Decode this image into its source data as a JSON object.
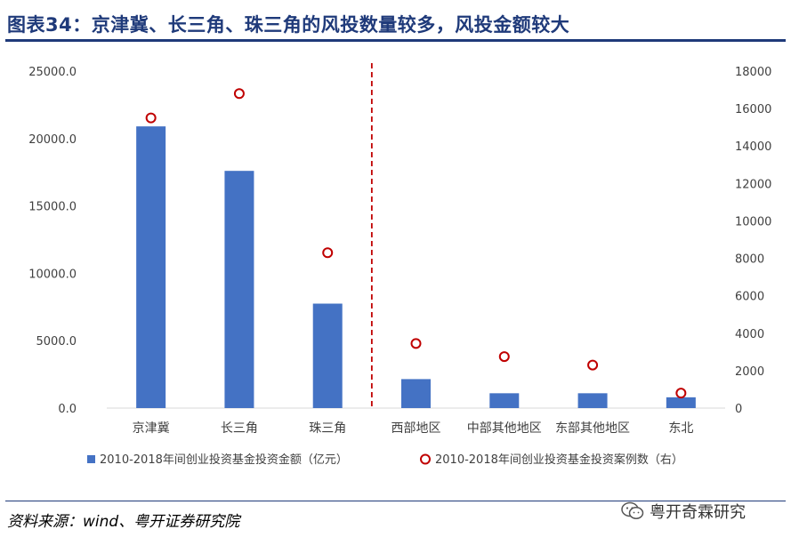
{
  "title": "图表34：京津冀、长三角、珠三角的风投数量较多，风投金额较大",
  "source": "资料来源：wind、粤开证券研究院",
  "watermark": "粤开奇霖研究",
  "colors": {
    "bar": "#4472c4",
    "marker": "#c00000",
    "divider": "#c00000",
    "title": "#1f3a7a"
  },
  "chart_data": {
    "type": "bar",
    "categories": [
      "京津冀",
      "长三角",
      "珠三角",
      "西部地区",
      "中部其他地区",
      "东部其他地区",
      "东北"
    ],
    "series": [
      {
        "name": "2010-2018年间创业投资基金投资金额（亿元）",
        "type": "bar",
        "axis": "left",
        "values": [
          20900,
          17600,
          7750,
          2150,
          1100,
          1100,
          800
        ]
      },
      {
        "name": "2010-2018年间创业投资基金投资案例数（右）",
        "type": "scatter",
        "axis": "right",
        "values": [
          15500,
          16800,
          8300,
          3450,
          2750,
          2300,
          800
        ]
      }
    ],
    "y_left": {
      "min": 0,
      "max": 25000,
      "ticks": [
        "0.0",
        "5000.0",
        "10000.0",
        "15000.0",
        "20000.0",
        "25000.0"
      ]
    },
    "y_right": {
      "min": 0,
      "max": 18000,
      "ticks": [
        "0",
        "2000",
        "4000",
        "6000",
        "8000",
        "10000",
        "12000",
        "14000",
        "16000",
        "18000"
      ]
    },
    "divider_after_category": 2,
    "grid": false,
    "legend_position": "bottom"
  }
}
